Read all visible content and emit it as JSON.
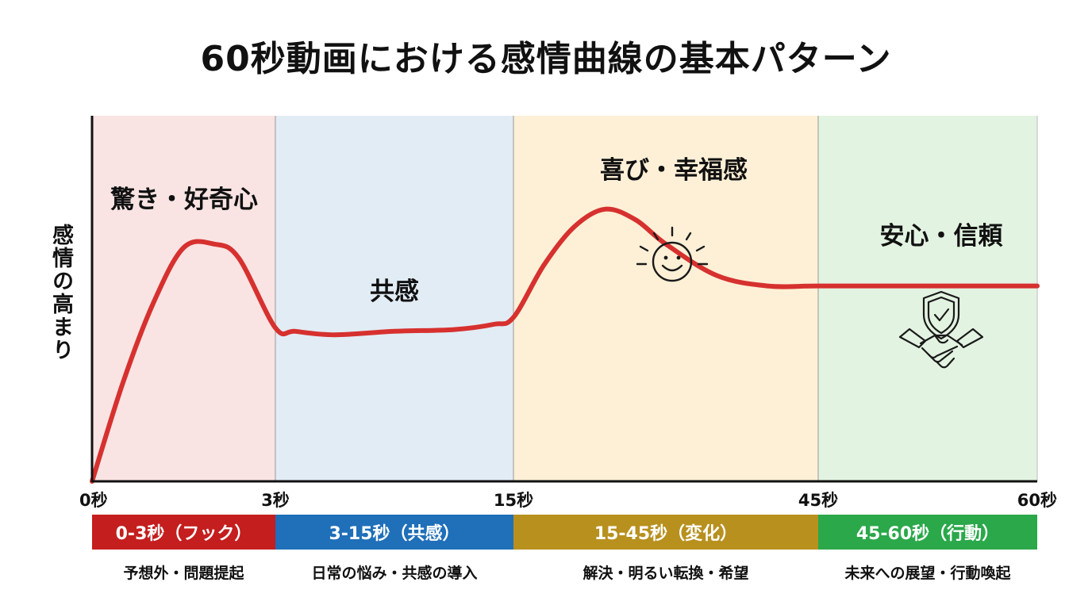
{
  "chart_data": {
    "type": "line",
    "title": "60秒動画における感情曲線の基本パターン",
    "ylabel": "感情の高まり",
    "xlabel": "",
    "xlim": [
      0,
      60
    ],
    "ylim": [
      0,
      100
    ],
    "grid": false,
    "x_ticks": [
      {
        "label": "0秒"
      },
      {
        "label": "3秒"
      },
      {
        "label": "15秒"
      },
      {
        "label": "45秒"
      },
      {
        "label": "60秒"
      }
    ],
    "series": [
      {
        "points": [
          [
            0.0,
            0
          ],
          [
            0.5,
            28
          ],
          [
            1.0,
            51
          ],
          [
            1.5,
            67
          ],
          [
            2.0,
            68
          ],
          [
            2.4,
            64
          ],
          [
            3.0,
            44
          ],
          [
            4.0,
            43
          ],
          [
            6.0,
            42
          ],
          [
            9.0,
            43
          ],
          [
            12.0,
            43.5
          ],
          [
            14.0,
            45
          ],
          [
            15.0,
            47
          ],
          [
            18.0,
            62
          ],
          [
            21.0,
            73
          ],
          [
            24.0,
            78
          ],
          [
            27.0,
            75
          ],
          [
            30.0,
            68
          ],
          [
            35.0,
            59
          ],
          [
            40.0,
            56
          ],
          [
            45.0,
            56
          ],
          [
            50.0,
            56
          ],
          [
            55.0,
            56
          ],
          [
            60.0,
            56
          ]
        ]
      }
    ],
    "phases": [
      {
        "x0": 0,
        "x1": 3,
        "label": "驚き・好奇心",
        "bg": "#f9e4e3",
        "bar_label": "0-3秒（フック）",
        "bar_color": "#c41e1e",
        "desc": "予想外・問題提起"
      },
      {
        "x0": 3,
        "x1": 15,
        "label": "共感",
        "bg": "#e2ecf5",
        "bar_label": "3-15秒（共感）",
        "bar_color": "#1f6fb9",
        "desc": "日常の悩み・共感の導入"
      },
      {
        "x0": 15,
        "x1": 45,
        "label": "喜び・幸福感",
        "bg": "#fdf0d6",
        "bar_label": "15-45秒（変化）",
        "bar_color": "#b8901e",
        "desc": "解決・明るい転換・希望"
      },
      {
        "x0": 45,
        "x1": 60,
        "label": "安心・信頼",
        "bg": "#e3f3e1",
        "bar_label": "45-60秒（行動）",
        "bar_color": "#2aa84a",
        "desc": "未来への展望・行動喚起"
      }
    ],
    "icons": [
      "smiling-sun-icon",
      "shield-handshake-icon"
    ],
    "line_color": "#d6312f"
  }
}
